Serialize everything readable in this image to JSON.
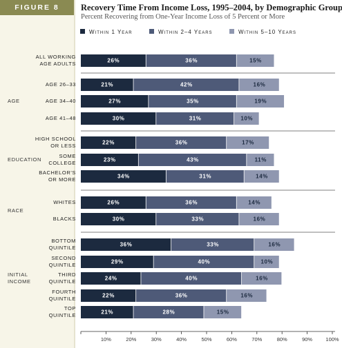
{
  "figure_label": "FIGURE 8",
  "title": "Recovery Time From Income Loss, 1995–2004, by Demographic Group",
  "subtitle": "Percent Recovering from One-Year Income Loss of 5 Percent or More",
  "legend": [
    {
      "name": "Within 1 Year",
      "color": "#1c2a3f"
    },
    {
      "name": "Within 2–4 Years",
      "color": "#4e5a78"
    },
    {
      "name": "Within 5–10 Years",
      "color": "#8f97b0"
    }
  ],
  "chart_data": {
    "type": "bar",
    "orientation": "horizontal",
    "stacked": true,
    "xlim": [
      0,
      100
    ],
    "xticks": [
      "10%",
      "20%",
      "30%",
      "40%",
      "50%",
      "60%",
      "70%",
      "80%",
      "90%",
      "100%"
    ],
    "groups": [
      {
        "label": "",
        "categories": [
          {
            "label": "All Working\nAge Adults",
            "values": [
              26,
              36,
              15
            ]
          }
        ]
      },
      {
        "label": "AGE",
        "categories": [
          {
            "label": "Age 26–33",
            "values": [
              21,
              42,
              16
            ]
          },
          {
            "label": "Age 34–40",
            "values": [
              27,
              35,
              19
            ]
          },
          {
            "label": "Age 41–48",
            "values": [
              30,
              31,
              10
            ]
          }
        ]
      },
      {
        "label": "EDUCATION",
        "categories": [
          {
            "label": "High School\nor Less",
            "values": [
              22,
              36,
              17
            ]
          },
          {
            "label": "Some\nCollege",
            "values": [
              23,
              43,
              11
            ]
          },
          {
            "label": "Bachelor's\nor More",
            "values": [
              34,
              31,
              14
            ]
          }
        ]
      },
      {
        "label": "RACE",
        "categories": [
          {
            "label": "Whites",
            "values": [
              26,
              36,
              14
            ]
          },
          {
            "label": "Blacks",
            "values": [
              30,
              33,
              16
            ]
          }
        ]
      },
      {
        "label": "INITIAL\nINCOME",
        "categories": [
          {
            "label": "Bottom\nQuintile",
            "values": [
              36,
              33,
              16
            ]
          },
          {
            "label": "Second\nQuintile",
            "values": [
              29,
              40,
              10
            ]
          },
          {
            "label": "Third\nQuintile",
            "values": [
              24,
              40,
              16
            ]
          },
          {
            "label": "Fourth\nQuintile",
            "values": [
              22,
              36,
              16
            ]
          },
          {
            "label": "Top\nQuintile",
            "values": [
              21,
              28,
              15
            ]
          }
        ]
      }
    ]
  }
}
